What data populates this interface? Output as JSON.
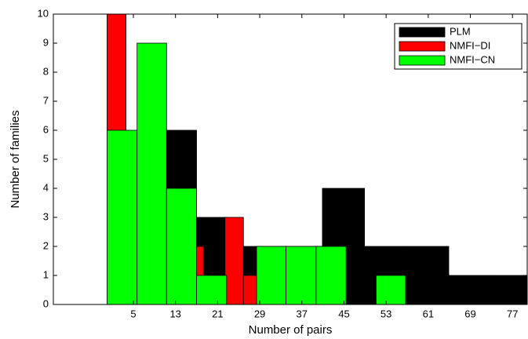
{
  "chart_data": {
    "type": "histogram",
    "x_label": "Number of pairs",
    "y_label": "Number of families",
    "xlim": [
      -10.2,
      79.8
    ],
    "xticks": [
      5,
      13,
      21,
      29,
      37,
      45,
      53,
      61,
      69,
      77
    ],
    "ylim": [
      0,
      10
    ],
    "yticks": [
      0,
      1,
      2,
      3,
      4,
      5,
      6,
      7,
      8,
      9,
      10
    ],
    "legend": "upper right",
    "series": [
      {
        "name": "PLM",
        "color": "#000000",
        "bins": [
          0,
          5.7,
          11.3,
          17,
          22.7,
          28.4,
          40.9,
          48.9,
          56.9,
          64.9,
          72.9,
          80
        ],
        "values": [
          0,
          0,
          6,
          3,
          2,
          2,
          4,
          2,
          2,
          1,
          1
        ]
      },
      {
        "name": "NMFI−DI",
        "color": "#ff0000",
        "bins": [
          0,
          3.6,
          16.8,
          18.3,
          22.4,
          25.9,
          28.4
        ],
        "values": [
          10,
          0,
          2,
          0,
          3,
          1
        ]
      },
      {
        "name": "NMFI−CN",
        "color": "#00ff00",
        "bins": [
          0,
          5.7,
          11.3,
          17,
          22.7,
          28.4,
          34,
          39.7,
          45.4,
          51.1,
          56.7
        ],
        "values": [
          6,
          9,
          4,
          1,
          0,
          2,
          2,
          2,
          0,
          1
        ]
      }
    ]
  }
}
